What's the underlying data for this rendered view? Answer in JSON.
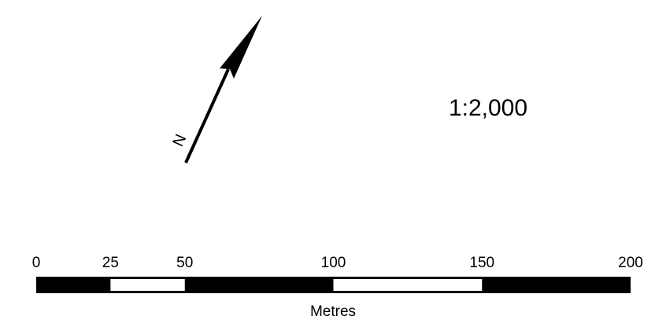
{
  "north_arrow": {
    "letter": "N",
    "icon": "north-arrow-icon"
  },
  "scale": {
    "ratio_text": "1:2,000",
    "units": "Metres",
    "ticks": [
      {
        "value": 0,
        "label": "0"
      },
      {
        "value": 25,
        "label": "25"
      },
      {
        "value": 50,
        "label": "50"
      },
      {
        "value": 100,
        "label": "100"
      },
      {
        "value": 150,
        "label": "150"
      },
      {
        "value": 200,
        "label": "200"
      }
    ],
    "segments": [
      {
        "from": 0,
        "to": 25,
        "fill": "#000000"
      },
      {
        "from": 25,
        "to": 50,
        "fill": "#ffffff"
      },
      {
        "from": 50,
        "to": 100,
        "fill": "#000000"
      },
      {
        "from": 100,
        "to": 150,
        "fill": "#ffffff"
      },
      {
        "from": 150,
        "to": 200,
        "fill": "#000000"
      }
    ],
    "max": 200
  },
  "colors": {
    "ink": "#000000",
    "paper": "#ffffff"
  }
}
